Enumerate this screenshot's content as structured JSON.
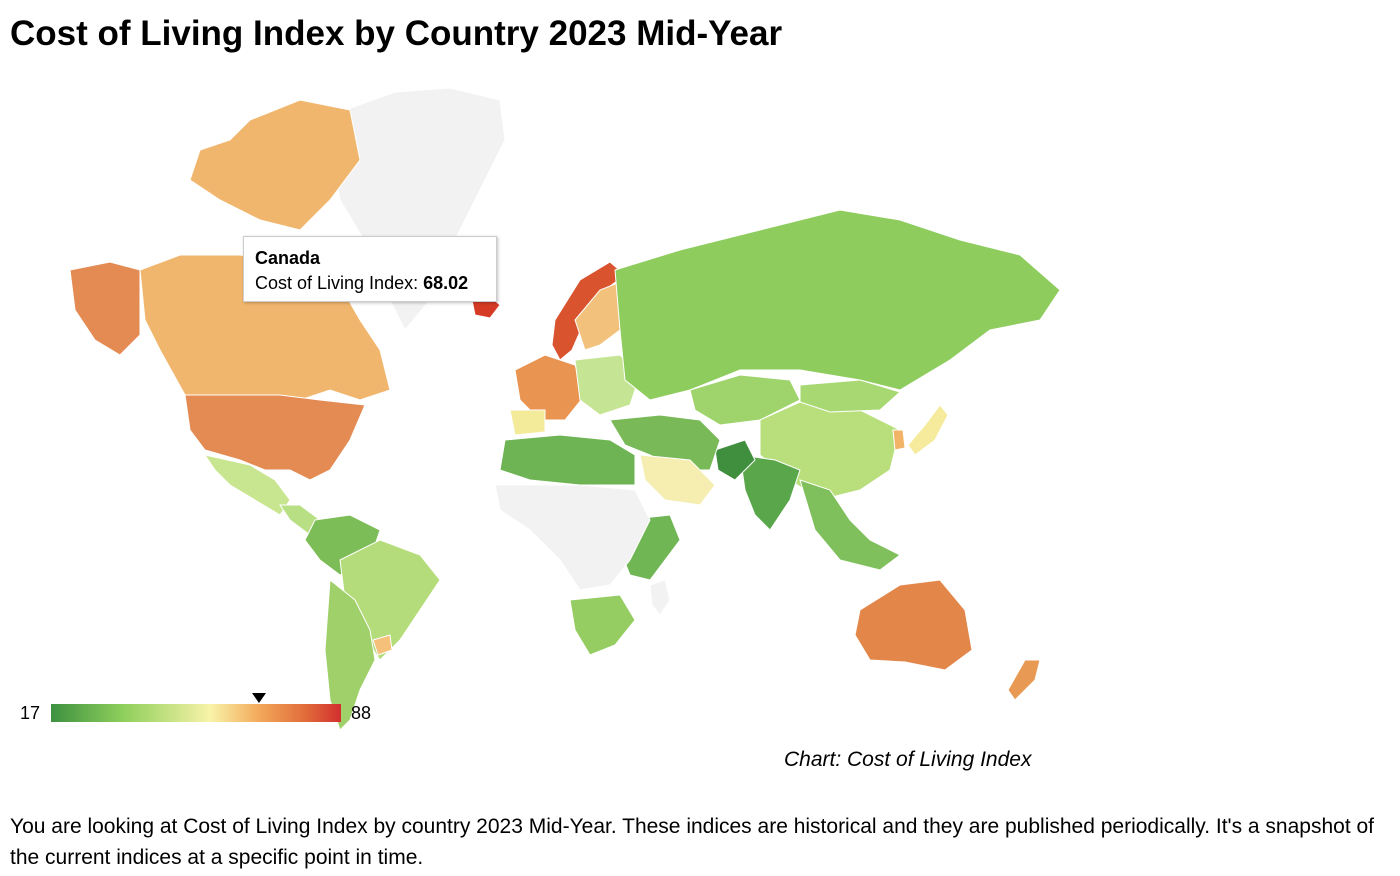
{
  "page": {
    "title": "Cost of Living Index by Country 2023 Mid-Year",
    "caption": "Chart: Cost of Living Index",
    "description": "You are looking at Cost of Living Index by country 2023 Mid-Year. These indices are historical and they are published periodically. It's a snapshot of the current indices at a specific point in time."
  },
  "tooltip": {
    "country": "Canada",
    "label": "Cost of Living Index:",
    "value": "68.02"
  },
  "legend": {
    "min": "17",
    "max": "88",
    "marker_value": 68.02,
    "colors": [
      "#3d9140",
      "#8fcf5c",
      "#f8f3a8",
      "#f3a85a",
      "#e06b3a",
      "#d32f2f"
    ]
  },
  "map": {
    "type": "choropleth",
    "metric": "Cost of Living Index",
    "no_data_color": "#f2f2f2",
    "regions": [
      {
        "name": "Greenland",
        "fill": "#f2f2f2",
        "icon": "no-data"
      },
      {
        "name": "Canada",
        "fill": "#f1b66d"
      },
      {
        "name": "Canadian Arctic",
        "fill": "#f1b66d"
      },
      {
        "name": "Alaska",
        "fill": "#e38b52"
      },
      {
        "name": "United States",
        "fill": "#e38b52"
      },
      {
        "name": "Mexico",
        "fill": "#c8e58f"
      },
      {
        "name": "Central America",
        "fill": "#b8df84"
      },
      {
        "name": "South America north",
        "fill": "#7dbd57"
      },
      {
        "name": "Brazil",
        "fill": "#b5dc7b"
      },
      {
        "name": "Argentina/Chile",
        "fill": "#9fd06a"
      },
      {
        "name": "Uruguay",
        "fill": "#f4c07a"
      },
      {
        "name": "Iceland",
        "fill": "#d43a24"
      },
      {
        "name": "Norway",
        "fill": "#d9532f"
      },
      {
        "name": "Sweden/Finland",
        "fill": "#f2c27c"
      },
      {
        "name": "Western Europe",
        "fill": "#e99450"
      },
      {
        "name": "Eastern Europe",
        "fill": "#c6e594"
      },
      {
        "name": "Spain",
        "fill": "#f3ea9a"
      },
      {
        "name": "Russia",
        "fill": "#8ecc5d"
      },
      {
        "name": "Central Asia",
        "fill": "#9fd36b"
      },
      {
        "name": "China",
        "fill": "#b9df7c"
      },
      {
        "name": "Mongolia",
        "fill": "#a7d872"
      },
      {
        "name": "Japan",
        "fill": "#f6eb9c"
      },
      {
        "name": "South Korea",
        "fill": "#f1b366"
      },
      {
        "name": "India",
        "fill": "#5aa64a"
      },
      {
        "name": "Pakistan",
        "fill": "#3f8f3f"
      },
      {
        "name": "Middle East",
        "fill": "#79b958"
      },
      {
        "name": "Saudi Arabia",
        "fill": "#f5eeb0"
      },
      {
        "name": "Southeast Asia",
        "fill": "#7fc05c"
      },
      {
        "name": "North Africa",
        "fill": "#6fb454"
      },
      {
        "name": "Nigeria",
        "fill": "#4f9e45"
      },
      {
        "name": "Kenya/Ethiopia",
        "fill": "#70b655"
      },
      {
        "name": "Southern Africa",
        "fill": "#95cd63"
      },
      {
        "name": "Central Africa",
        "fill": "#f2f2f2",
        "icon": "no-data"
      },
      {
        "name": "Australia",
        "fill": "#e3864a"
      },
      {
        "name": "New Zealand",
        "fill": "#e89a55"
      },
      {
        "name": "Antarctic islands",
        "fill": "#f2f2f2",
        "icon": "no-data"
      }
    ]
  }
}
